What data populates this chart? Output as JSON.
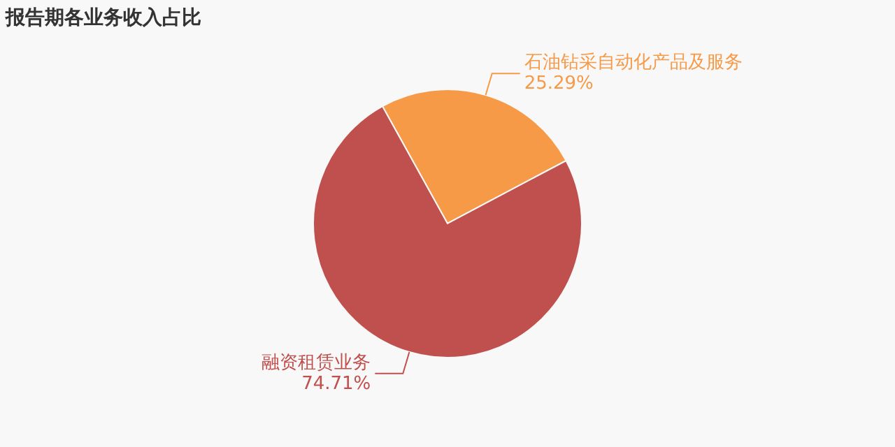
{
  "chart_data": {
    "type": "pie",
    "title": "报告期各业务收入占比",
    "categories": [
      "石油钻采自动化产品及服务",
      "融资租赁业务"
    ],
    "values": [
      25.29,
      74.71
    ],
    "colors": [
      "#f79a48",
      "#c0504d"
    ],
    "value_labels": [
      "25.29%",
      "74.71%"
    ]
  }
}
